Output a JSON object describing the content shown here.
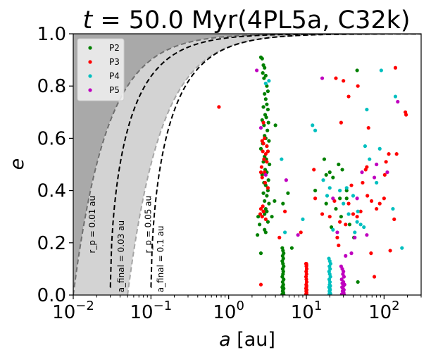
{
  "chart_data": {
    "type": "scatter",
    "title": "t = 50.0 Myr(4PL5a, C32k)",
    "title_parts": {
      "t_symbol": "t",
      "rest": " = 50.0 Myr(4PL5a, C32k)"
    },
    "xlabel": "a [au]",
    "xlabel_parts": {
      "symbol": "a",
      "unit": " [au]"
    },
    "ylabel": "e",
    "x_scale": "log",
    "xlim": [
      0.01,
      300
    ],
    "ylim": [
      0.0,
      1.0
    ],
    "x_ticks": [
      {
        "value": 0.01,
        "base": "10",
        "exp": "−2"
      },
      {
        "value": 0.1,
        "base": "10",
        "exp": "−1"
      },
      {
        "value": 1,
        "base": "10",
        "exp": "0"
      },
      {
        "value": 10,
        "base": "10",
        "exp": "1"
      },
      {
        "value": 100,
        "base": "10",
        "exp": "2"
      }
    ],
    "y_ticks": [
      {
        "value": 0.0,
        "label": "0.0"
      },
      {
        "value": 0.2,
        "label": "0.2"
      },
      {
        "value": 0.4,
        "label": "0.4"
      },
      {
        "value": 0.6,
        "label": "0.6"
      },
      {
        "value": 0.8,
        "label": "0.8"
      },
      {
        "value": 1.0,
        "label": "1.0"
      }
    ],
    "curves": [
      {
        "name": "rp-0.01",
        "rp": 0.01,
        "color": "#707070",
        "label": "r_p = 0.01 au",
        "label_x": 0.019,
        "label_y": 0.16
      },
      {
        "name": "rp-0.05",
        "rp": 0.05,
        "color": "#a6a6a6",
        "label": "r_p = 0.05 au",
        "label_x": 0.1,
        "label_y": 0.16
      },
      {
        "name": "afinal-0.03",
        "afinal": 0.03,
        "color": "#000000",
        "label": "a_final = 0.03 au",
        "label_x": 0.045,
        "label_y": 0.01
      },
      {
        "name": "afinal-0.1",
        "afinal": 0.1,
        "color": "#000000",
        "label": "a_final = 0.1 au",
        "label_x": 0.145,
        "label_y": 0.01
      }
    ],
    "shading": {
      "dark": "#a9a9a9",
      "light": "#d3d3d3"
    },
    "legend": {
      "placement": "top-left",
      "entries": [
        "P2",
        "P3",
        "P4",
        "P5"
      ]
    },
    "series": [
      {
        "name": "P2",
        "color": "#008000",
        "points": [
          [
            2.6,
            0.91
          ],
          [
            2.7,
            0.905
          ],
          [
            2.8,
            0.88
          ],
          [
            2.9,
            0.87
          ],
          [
            2.75,
            0.85
          ],
          [
            3.0,
            0.84
          ],
          [
            2.85,
            0.83
          ],
          [
            3.1,
            0.8
          ],
          [
            3.2,
            0.78
          ],
          [
            2.9,
            0.77
          ],
          [
            3.0,
            0.75
          ],
          [
            3.1,
            0.73
          ],
          [
            2.8,
            0.72
          ],
          [
            3.2,
            0.71
          ],
          [
            2.95,
            0.69
          ],
          [
            3.05,
            0.68
          ],
          [
            2.7,
            0.67
          ],
          [
            3.25,
            0.66
          ],
          [
            2.85,
            0.65
          ],
          [
            3.15,
            0.63
          ],
          [
            4.0,
            0.65
          ],
          [
            2.9,
            0.61
          ],
          [
            3.0,
            0.6
          ],
          [
            3.3,
            0.59
          ],
          [
            2.75,
            0.58
          ],
          [
            3.1,
            0.57
          ],
          [
            2.6,
            0.56
          ],
          [
            3.2,
            0.55
          ],
          [
            2.9,
            0.53
          ],
          [
            3.05,
            0.52
          ],
          [
            2.8,
            0.51
          ],
          [
            3.35,
            0.5
          ],
          [
            2.95,
            0.48
          ],
          [
            3.1,
            0.47
          ],
          [
            2.7,
            0.46
          ],
          [
            3.25,
            0.44
          ],
          [
            2.85,
            0.43
          ],
          [
            3.0,
            0.42
          ],
          [
            3.2,
            0.4
          ],
          [
            2.8,
            0.39
          ],
          [
            3.1,
            0.38
          ],
          [
            2.9,
            0.36
          ],
          [
            3.3,
            0.35
          ],
          [
            3.0,
            0.33
          ],
          [
            3.1,
            0.32
          ],
          [
            2.9,
            0.31
          ],
          [
            2.4,
            0.3
          ],
          [
            3.2,
            0.28
          ],
          [
            2.5,
            0.27
          ],
          [
            2.9,
            0.25
          ],
          [
            3.0,
            0.24
          ],
          [
            2.35,
            0.23
          ],
          [
            3.6,
            0.3
          ],
          [
            5.0,
            0.35
          ],
          [
            5.8,
            0.39
          ],
          [
            3.9,
            0.36
          ],
          [
            6.5,
            0.18
          ],
          [
            2.6,
            0.16
          ],
          [
            45.0,
            0.86
          ],
          [
            18.0,
            0.46
          ],
          [
            13.0,
            0.4
          ],
          [
            17.0,
            0.52
          ],
          [
            26.0,
            0.5
          ],
          [
            29.0,
            0.48
          ],
          [
            20.0,
            0.47
          ],
          [
            22.0,
            0.45
          ],
          [
            27.0,
            0.37
          ],
          [
            33.0,
            0.37
          ],
          [
            24.0,
            0.33
          ],
          [
            18.0,
            0.35
          ],
          [
            28.0,
            0.3
          ],
          [
            36.0,
            0.27
          ],
          [
            41.0,
            0.22
          ],
          [
            21.0,
            0.26
          ],
          [
            33.0,
            0.4
          ],
          [
            46.0,
            0.05
          ],
          [
            4.9,
            0.18
          ],
          [
            5.0,
            0.17
          ],
          [
            5.1,
            0.16
          ],
          [
            4.95,
            0.15
          ],
          [
            5.05,
            0.14
          ],
          [
            4.9,
            0.13
          ],
          [
            5.0,
            0.12
          ],
          [
            5.1,
            0.11
          ],
          [
            4.95,
            0.1
          ],
          [
            5.05,
            0.09
          ],
          [
            5.0,
            0.08
          ],
          [
            4.9,
            0.07
          ],
          [
            5.1,
            0.06
          ],
          [
            4.95,
            0.05
          ],
          [
            5.05,
            0.04
          ],
          [
            5.0,
            0.035
          ],
          [
            4.9,
            0.03
          ],
          [
            5.1,
            0.025
          ],
          [
            5.0,
            0.02
          ],
          [
            4.95,
            0.015
          ],
          [
            5.05,
            0.01
          ],
          [
            5.0,
            0.005
          ],
          [
            4.9,
            0.003
          ],
          [
            5.1,
            0.002
          ]
        ]
      },
      {
        "name": "P3",
        "color": "#ff0000",
        "points": [
          [
            0.75,
            0.72
          ],
          [
            2.6,
            0.04
          ],
          [
            2.7,
            0.59
          ],
          [
            2.9,
            0.6
          ],
          [
            2.8,
            0.58
          ],
          [
            2.75,
            0.55
          ],
          [
            3.0,
            0.54
          ],
          [
            2.85,
            0.52
          ],
          [
            3.1,
            0.51
          ],
          [
            2.65,
            0.49
          ],
          [
            2.9,
            0.47
          ],
          [
            2.7,
            0.45
          ],
          [
            2.95,
            0.43
          ],
          [
            3.2,
            0.41
          ],
          [
            2.6,
            0.47
          ],
          [
            2.75,
            0.34
          ],
          [
            2.6,
            0.33
          ],
          [
            2.8,
            0.32
          ],
          [
            2.55,
            0.31
          ],
          [
            2.7,
            0.3
          ],
          [
            3.0,
            0.29
          ],
          [
            2.8,
            0.66
          ],
          [
            3.1,
            0.57
          ],
          [
            3.2,
            0.55
          ],
          [
            5.3,
            0.32
          ],
          [
            4.5,
            0.22
          ],
          [
            8.5,
            0.24
          ],
          [
            12.5,
            0.48
          ],
          [
            13.0,
            0.37
          ],
          [
            16.0,
            0.31
          ],
          [
            20.0,
            0.3
          ],
          [
            25.0,
            0.22
          ],
          [
            23.0,
            0.36
          ],
          [
            27.0,
            0.28
          ],
          [
            32.0,
            0.27
          ],
          [
            26.0,
            0.19
          ],
          [
            35.0,
            0.35
          ],
          [
            38.0,
            0.42
          ],
          [
            40.0,
            0.31
          ],
          [
            45.0,
            0.3
          ],
          [
            50.0,
            0.32
          ],
          [
            53.0,
            0.43
          ],
          [
            58.0,
            0.48
          ],
          [
            61.0,
            0.38
          ],
          [
            63.0,
            0.64
          ],
          [
            69.0,
            0.36
          ],
          [
            75.0,
            0.07
          ],
          [
            80.0,
            0.33
          ],
          [
            88.0,
            0.35
          ],
          [
            100.0,
            0.37
          ],
          [
            102.0,
            0.46
          ],
          [
            106.0,
            0.51
          ],
          [
            115.0,
            0.54
          ],
          [
            120.0,
            0.17
          ],
          [
            135.0,
            0.29
          ],
          [
            140.0,
            0.87
          ],
          [
            145.0,
            0.54
          ],
          [
            188.0,
            0.7
          ],
          [
            192.0,
            0.69
          ],
          [
            24.0,
            0.83
          ],
          [
            30.0,
            0.82
          ],
          [
            35.0,
            0.76
          ],
          [
            46.0,
            0.8
          ],
          [
            28.0,
            0.66
          ],
          [
            60.0,
            0.49
          ],
          [
            68.0,
            0.16
          ],
          [
            9.9,
            0.12
          ],
          [
            10.0,
            0.11
          ],
          [
            10.1,
            0.1
          ],
          [
            9.95,
            0.09
          ],
          [
            10.05,
            0.08
          ],
          [
            9.9,
            0.07
          ],
          [
            10.0,
            0.06
          ],
          [
            10.1,
            0.05
          ],
          [
            9.95,
            0.04
          ],
          [
            10.05,
            0.035
          ],
          [
            10.0,
            0.03
          ],
          [
            9.9,
            0.025
          ],
          [
            10.1,
            0.02
          ],
          [
            9.95,
            0.015
          ],
          [
            10.05,
            0.01
          ],
          [
            10.0,
            0.005
          ],
          [
            9.9,
            0.003
          ],
          [
            10.1,
            0.002
          ],
          [
            10.0,
            0.12
          ],
          [
            10.05,
            0.115
          ]
        ]
      },
      {
        "name": "P4",
        "color": "#00bfbf",
        "points": [
          [
            3.0,
            0.81
          ],
          [
            3.3,
            0.82
          ],
          [
            4.8,
            0.52
          ],
          [
            5.3,
            0.24
          ],
          [
            9.0,
            0.29
          ],
          [
            12.0,
            0.65
          ],
          [
            13.0,
            0.63
          ],
          [
            16.5,
            0.44
          ],
          [
            20.0,
            0.41
          ],
          [
            18.5,
            0.38
          ],
          [
            27.0,
            0.4
          ],
          [
            33.0,
            0.41
          ],
          [
            35.0,
            0.31
          ],
          [
            40.0,
            0.38
          ],
          [
            45.0,
            0.28
          ],
          [
            46.0,
            0.32
          ],
          [
            42.0,
            0.24
          ],
          [
            50.0,
            0.27
          ],
          [
            55.0,
            0.26
          ],
          [
            57.0,
            0.57
          ],
          [
            60.0,
            0.71
          ],
          [
            80.0,
            0.43
          ],
          [
            88.0,
            0.56
          ],
          [
            92.0,
            0.86
          ],
          [
            130.0,
            0.33
          ],
          [
            140.0,
            0.76
          ],
          [
            170.0,
            0.18
          ],
          [
            65.0,
            0.52
          ],
          [
            30.0,
            0.35
          ],
          [
            22.0,
            0.25
          ],
          [
            19.5,
            0.14
          ],
          [
            20.0,
            0.13
          ],
          [
            20.5,
            0.12
          ],
          [
            19.8,
            0.11
          ],
          [
            20.2,
            0.1
          ],
          [
            19.6,
            0.09
          ],
          [
            20.0,
            0.08
          ],
          [
            20.4,
            0.07
          ],
          [
            19.7,
            0.06
          ],
          [
            20.1,
            0.05
          ],
          [
            19.9,
            0.04
          ],
          [
            20.3,
            0.035
          ],
          [
            19.6,
            0.03
          ],
          [
            20.0,
            0.025
          ],
          [
            20.2,
            0.02
          ],
          [
            19.8,
            0.015
          ],
          [
            20.0,
            0.01
          ],
          [
            20.4,
            0.005
          ],
          [
            19.7,
            0.003
          ],
          [
            20.1,
            0.002
          ]
        ]
      },
      {
        "name": "P5",
        "color": "#bf00bf",
        "points": [
          [
            2.3,
            0.86
          ],
          [
            2.6,
            0.64
          ],
          [
            3.0,
            0.46
          ],
          [
            5.5,
            0.44
          ],
          [
            7.8,
            0.23
          ],
          [
            16.0,
            0.83
          ],
          [
            22.0,
            0.37
          ],
          [
            25.0,
            0.24
          ],
          [
            32.0,
            0.15
          ],
          [
            45.0,
            0.37
          ],
          [
            52.0,
            0.47
          ],
          [
            75.0,
            0.45
          ],
          [
            80.0,
            0.5
          ],
          [
            110.0,
            0.47
          ],
          [
            150.0,
            0.74
          ],
          [
            42.0,
            0.22
          ],
          [
            38.0,
            0.16
          ],
          [
            60.0,
            0.23
          ],
          [
            28.0,
            0.11
          ],
          [
            29.0,
            0.1
          ],
          [
            30.0,
            0.09
          ],
          [
            29.5,
            0.08
          ],
          [
            30.5,
            0.07
          ],
          [
            28.5,
            0.06
          ],
          [
            30.0,
            0.05
          ],
          [
            29.0,
            0.045
          ],
          [
            31.0,
            0.04
          ],
          [
            30.0,
            0.035
          ],
          [
            28.8,
            0.03
          ],
          [
            29.6,
            0.025
          ],
          [
            30.4,
            0.02
          ],
          [
            29.2,
            0.015
          ],
          [
            30.2,
            0.01
          ],
          [
            29.8,
            0.005
          ],
          [
            28.6,
            0.003
          ],
          [
            30.6,
            0.002
          ]
        ]
      }
    ]
  }
}
